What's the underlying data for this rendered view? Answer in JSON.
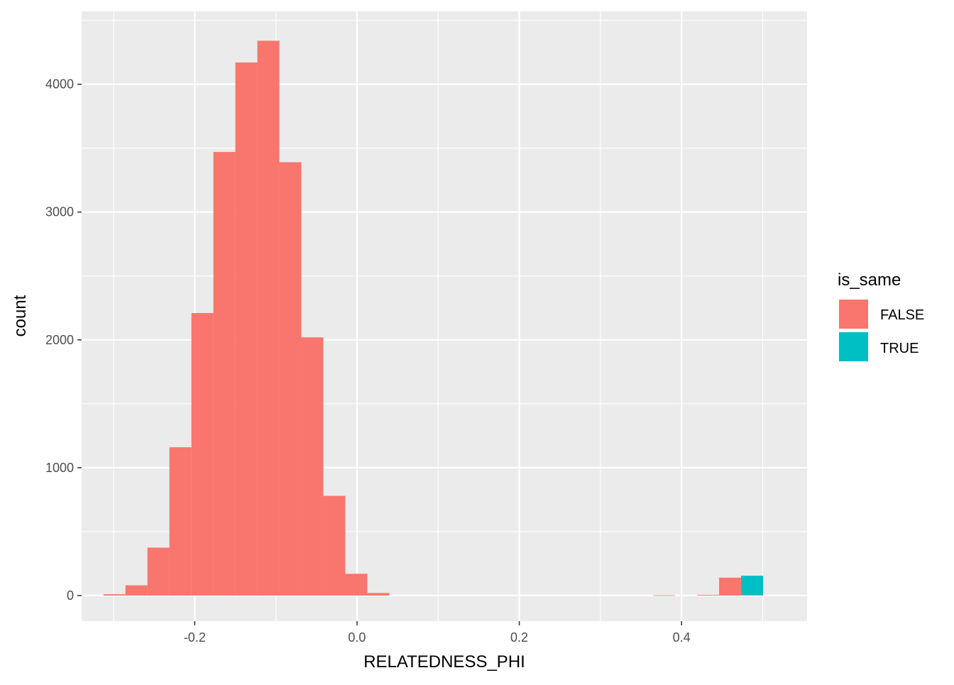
{
  "chart_data": {
    "type": "bar",
    "subtype": "stacked-histogram",
    "title": "",
    "xlabel": "RELATEDNESS_PHI",
    "ylabel": "count",
    "xlim": [
      -0.3394,
      0.5547
    ],
    "ylim": [
      -200,
      4570
    ],
    "x_ticks": [
      -0.2,
      0.0,
      0.2,
      0.4
    ],
    "x_tick_labels": [
      "-0.2",
      "0.0",
      "0.2",
      "0.4"
    ],
    "y_ticks": [
      0,
      1000,
      2000,
      3000,
      4000
    ],
    "y_tick_labels": [
      "0",
      "1000",
      "2000",
      "3000",
      "4000"
    ],
    "grid": true,
    "legend": {
      "title": "is_same",
      "position": "right"
    },
    "bin_width": 0.0271,
    "series": [
      {
        "name": "FALSE",
        "color": "#F8766D",
        "bins": [
          {
            "x0": -0.3125,
            "x1": -0.2854,
            "count": 10
          },
          {
            "x0": -0.2854,
            "x1": -0.2583,
            "count": 80
          },
          {
            "x0": -0.2583,
            "x1": -0.2312,
            "count": 375
          },
          {
            "x0": -0.2312,
            "x1": -0.2041,
            "count": 1160
          },
          {
            "x0": -0.2041,
            "x1": -0.177,
            "count": 2210
          },
          {
            "x0": -0.177,
            "x1": -0.1499,
            "count": 3470
          },
          {
            "x0": -0.1499,
            "x1": -0.1228,
            "count": 4170
          },
          {
            "x0": -0.1228,
            "x1": -0.0957,
            "count": 4340
          },
          {
            "x0": -0.0957,
            "x1": -0.0686,
            "count": 3390
          },
          {
            "x0": -0.0686,
            "x1": -0.0415,
            "count": 2020
          },
          {
            "x0": -0.0415,
            "x1": -0.0144,
            "count": 780
          },
          {
            "x0": -0.0144,
            "x1": 0.0127,
            "count": 170
          },
          {
            "x0": 0.0127,
            "x1": 0.0398,
            "count": 20
          },
          {
            "x0": 0.365,
            "x1": 0.3921,
            "count": 2
          },
          {
            "x0": 0.4192,
            "x1": 0.4463,
            "count": 5
          },
          {
            "x0": 0.4463,
            "x1": 0.4734,
            "count": 140
          },
          {
            "x0": 0.4734,
            "x1": 0.5005,
            "count": 5
          }
        ]
      },
      {
        "name": "TRUE",
        "color": "#00BFC4",
        "bins": [
          {
            "x0": 0.4734,
            "x1": 0.5005,
            "count": 150
          }
        ]
      }
    ]
  }
}
